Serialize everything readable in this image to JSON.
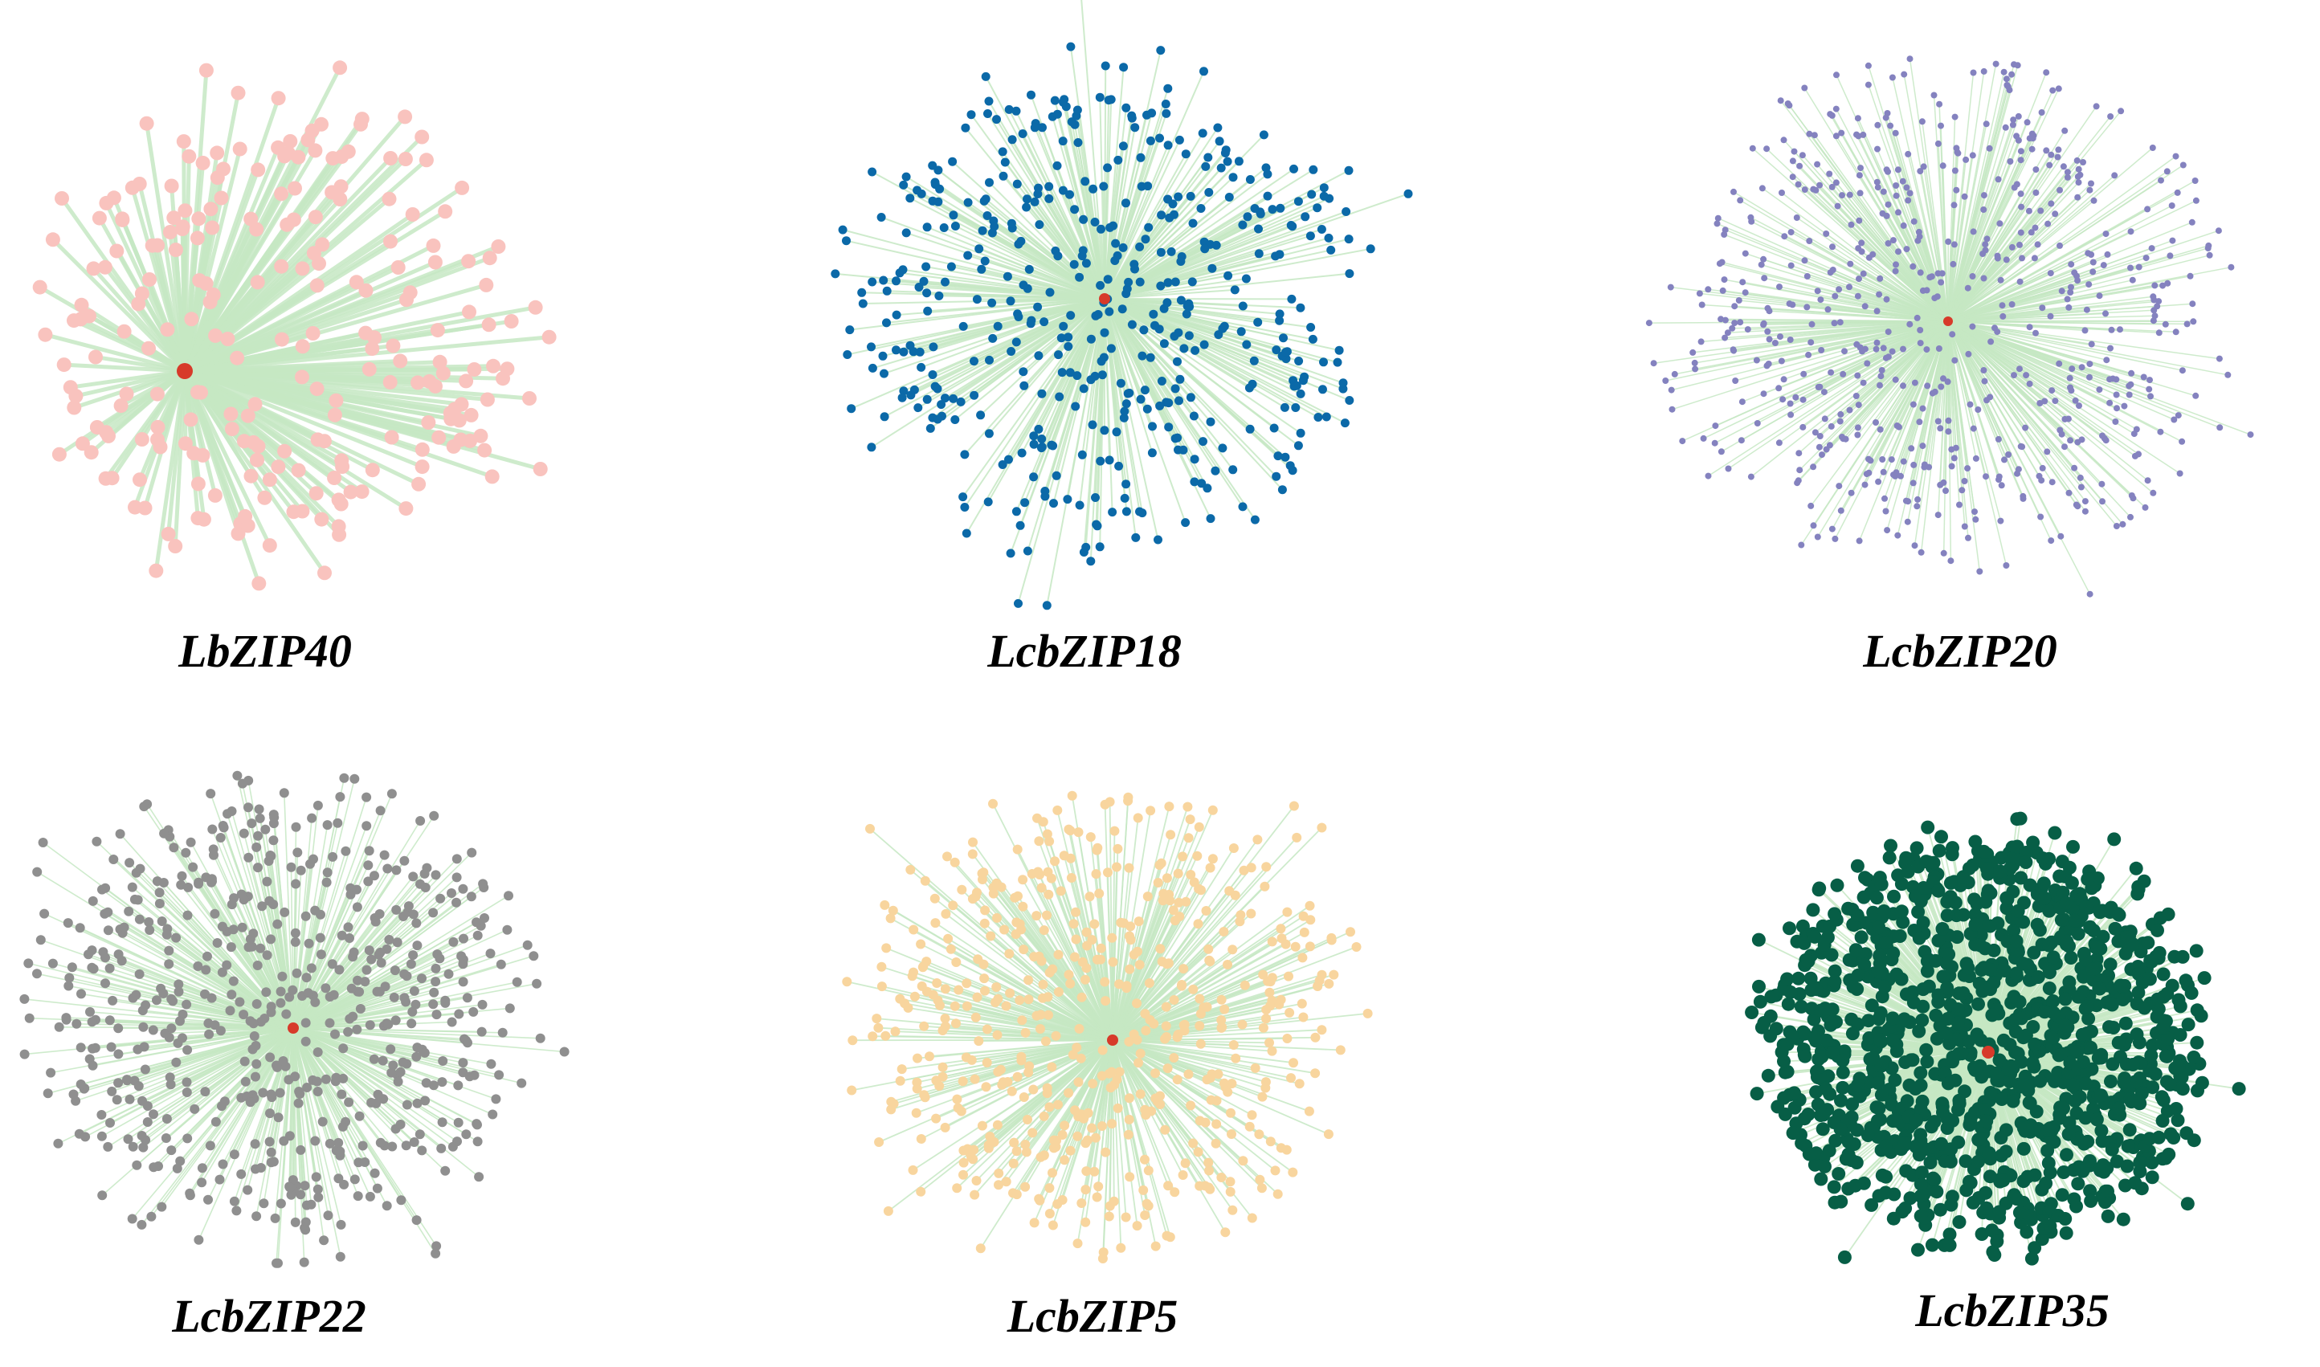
{
  "networks": [
    {
      "id": "n1",
      "label": "LbZIP40",
      "node_color": "#f9c3be",
      "edge_color": "#c6e8c3",
      "hub_color": "#d73a2a"
    },
    {
      "id": "n2",
      "label": "LcbZIP18",
      "node_color": "#0b69a8",
      "edge_color": "#c6e8c3",
      "hub_color": "#d73a2a"
    },
    {
      "id": "n3",
      "label": "LcbZIP20",
      "node_color": "#8482bf",
      "edge_color": "#c6e8c3",
      "hub_color": "#d73a2a"
    },
    {
      "id": "n4",
      "label": "LcbZIP22",
      "node_color": "#8f8f8f",
      "edge_color": "#c6e8c3",
      "hub_color": "#d73a2a"
    },
    {
      "id": "n5",
      "label": "LcbZIP5",
      "node_color": "#f8d59e",
      "edge_color": "#c6e8c3",
      "hub_color": "#d73a2a"
    },
    {
      "id": "n6",
      "label": "LcbZIP35",
      "node_color": "#075e46",
      "edge_color": "#c6e8c3",
      "hub_color": "#d73a2a"
    }
  ]
}
